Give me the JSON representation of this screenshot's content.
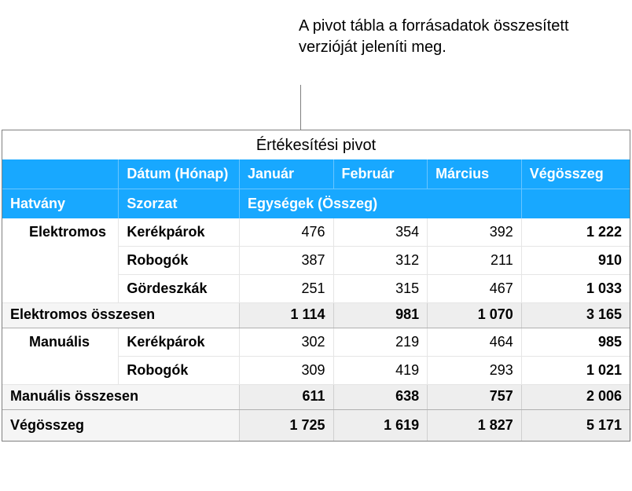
{
  "caption": "A pivot tábla a forrásadatok összesített verzióját jeleníti meg.",
  "table": {
    "title": "Értékesítési pivot",
    "header1": {
      "date_month": "Dátum (Hónap)",
      "jan": "Január",
      "feb": "Február",
      "mar": "Március",
      "grand": "Végösszeg"
    },
    "header2": {
      "power": "Hatvány",
      "product": "Szorzat",
      "units_sum": "Egységek (Összeg)"
    },
    "groups": [
      {
        "category": "Elektromos",
        "rows": [
          {
            "product": "Kerékpárok",
            "jan": "476",
            "feb": "354",
            "mar": "392",
            "total": "1 222"
          },
          {
            "product": "Robogók",
            "jan": "387",
            "feb": "312",
            "mar": "211",
            "total": "910"
          },
          {
            "product": "Gördeszkák",
            "jan": "251",
            "feb": "315",
            "mar": "467",
            "total": "1 033"
          }
        ],
        "subtotal": {
          "label": "Elektromos összesen",
          "jan": "1 114",
          "feb": "981",
          "mar": "1 070",
          "total": "3 165"
        }
      },
      {
        "category": "Manuális",
        "rows": [
          {
            "product": "Kerékpárok",
            "jan": "302",
            "feb": "219",
            "mar": "464",
            "total": "985"
          },
          {
            "product": "Robogók",
            "jan": "309",
            "feb": "419",
            "mar": "293",
            "total": "1 021"
          }
        ],
        "subtotal": {
          "label": "Manuális összesen",
          "jan": "611",
          "feb": "638",
          "mar": "757",
          "total": "2 006"
        }
      }
    ],
    "grand_total": {
      "label": "Végösszeg",
      "jan": "1 725",
      "feb": "1 619",
      "mar": "1 827",
      "total": "5 171"
    }
  },
  "colors": {
    "header_bg": "#18a8ff",
    "header_fg": "#ffffff",
    "subtotal_bg": "#eeeeee",
    "border": "#808080",
    "row_border": "#e5e5e5"
  }
}
